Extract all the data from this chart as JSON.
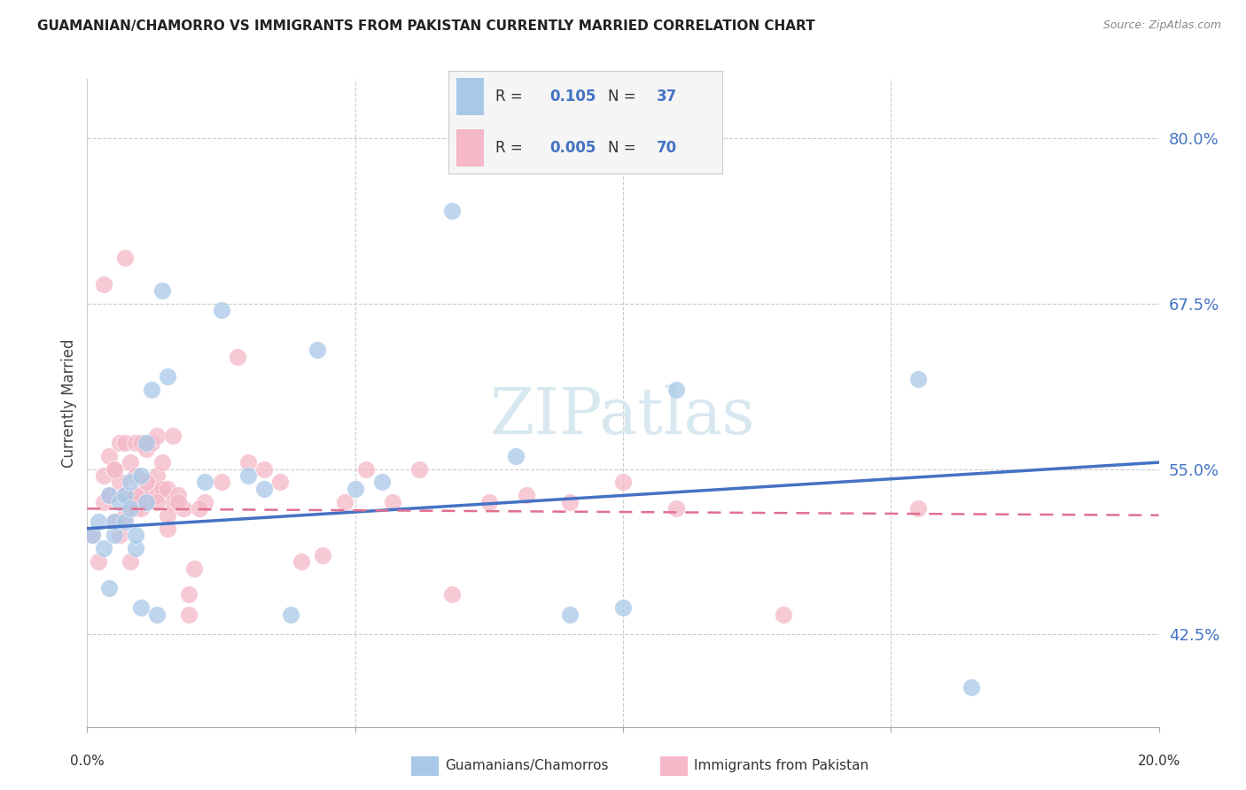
{
  "title": "GUAMANIAN/CHAMORRO VS IMMIGRANTS FROM PAKISTAN CURRENTLY MARRIED CORRELATION CHART",
  "source": "Source: ZipAtlas.com",
  "ylabel": "Currently Married",
  "yticks": [
    0.425,
    0.55,
    0.675,
    0.8
  ],
  "ytick_labels": [
    "42.5%",
    "55.0%",
    "67.5%",
    "80.0%"
  ],
  "xmin": 0.0,
  "xmax": 0.2,
  "ymin": 0.355,
  "ymax": 0.845,
  "blue_R": "0.105",
  "blue_N": "37",
  "pink_R": "0.005",
  "pink_N": "70",
  "blue_color": "#a8c8e8",
  "pink_color": "#f4b8c8",
  "blue_line_color": "#4472c4",
  "pink_line_color": "#e07090",
  "legend_label_blue": "Guamanians/Chamorros",
  "legend_label_pink": "Immigrants from Pakistan",
  "blue_x": [
    0.001,
    0.002,
    0.003,
    0.004,
    0.004,
    0.005,
    0.005,
    0.006,
    0.007,
    0.007,
    0.008,
    0.008,
    0.009,
    0.009,
    0.01,
    0.01,
    0.011,
    0.011,
    0.012,
    0.013,
    0.014,
    0.015,
    0.022,
    0.025,
    0.03,
    0.033,
    0.038,
    0.043,
    0.05,
    0.055,
    0.068,
    0.08,
    0.09,
    0.1,
    0.11,
    0.155,
    0.165
  ],
  "blue_y": [
    0.5,
    0.51,
    0.49,
    0.46,
    0.53,
    0.5,
    0.51,
    0.525,
    0.53,
    0.51,
    0.52,
    0.54,
    0.49,
    0.5,
    0.445,
    0.545,
    0.525,
    0.57,
    0.61,
    0.44,
    0.685,
    0.62,
    0.54,
    0.67,
    0.545,
    0.535,
    0.44,
    0.64,
    0.535,
    0.54,
    0.745,
    0.56,
    0.44,
    0.445,
    0.61,
    0.618,
    0.385
  ],
  "pink_x": [
    0.001,
    0.002,
    0.003,
    0.003,
    0.004,
    0.004,
    0.005,
    0.005,
    0.006,
    0.006,
    0.006,
    0.007,
    0.007,
    0.007,
    0.008,
    0.008,
    0.008,
    0.009,
    0.009,
    0.009,
    0.01,
    0.01,
    0.01,
    0.011,
    0.011,
    0.012,
    0.012,
    0.013,
    0.013,
    0.013,
    0.014,
    0.014,
    0.015,
    0.015,
    0.016,
    0.016,
    0.017,
    0.018,
    0.019,
    0.02,
    0.022,
    0.025,
    0.028,
    0.03,
    0.033,
    0.036,
    0.04,
    0.044,
    0.048,
    0.052,
    0.057,
    0.062,
    0.068,
    0.075,
    0.082,
    0.09,
    0.1,
    0.11,
    0.13,
    0.155,
    0.003,
    0.005,
    0.007,
    0.009,
    0.011,
    0.013,
    0.015,
    0.017,
    0.019,
    0.021
  ],
  "pink_y": [
    0.5,
    0.48,
    0.525,
    0.545,
    0.53,
    0.56,
    0.51,
    0.55,
    0.5,
    0.54,
    0.57,
    0.515,
    0.53,
    0.57,
    0.48,
    0.525,
    0.555,
    0.52,
    0.545,
    0.57,
    0.52,
    0.53,
    0.57,
    0.525,
    0.565,
    0.535,
    0.57,
    0.53,
    0.545,
    0.575,
    0.535,
    0.555,
    0.505,
    0.535,
    0.525,
    0.575,
    0.53,
    0.52,
    0.455,
    0.475,
    0.525,
    0.54,
    0.635,
    0.555,
    0.55,
    0.54,
    0.48,
    0.485,
    0.525,
    0.55,
    0.525,
    0.55,
    0.455,
    0.525,
    0.53,
    0.525,
    0.54,
    0.52,
    0.44,
    0.52,
    0.69,
    0.55,
    0.71,
    0.53,
    0.54,
    0.525,
    0.515,
    0.525,
    0.44,
    0.52
  ],
  "blue_trend_x": [
    0.0,
    0.2
  ],
  "blue_trend_y": [
    0.505,
    0.555
  ],
  "pink_trend_x": [
    0.0,
    0.2
  ],
  "pink_trend_y": [
    0.52,
    0.515
  ],
  "xtick_positions": [
    0.0,
    0.05,
    0.1,
    0.15,
    0.2
  ],
  "watermark": "ZIPatlas",
  "watermark_color": "#d8e8f0",
  "background_color": "#ffffff"
}
